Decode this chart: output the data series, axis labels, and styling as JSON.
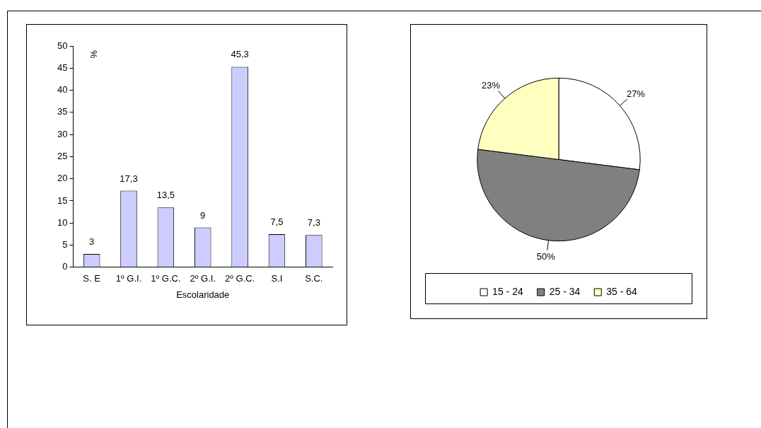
{
  "chart_data": [
    {
      "type": "bar",
      "xlabel": "Escolaridade",
      "ylabel": "%",
      "categories": [
        "S. E",
        "1º G.I.",
        "1º G.C.",
        "2º G.I.",
        "2º G.C.",
        "S.I",
        "S.C."
      ],
      "values": [
        3,
        17.3,
        13.5,
        9,
        45.3,
        7.5,
        7.3
      ],
      "value_labels": [
        "3",
        "17,3",
        "13,5",
        "9",
        "45,3",
        "7,5",
        "7,3"
      ],
      "color": "#ccccff",
      "ylim": [
        0,
        50
      ],
      "yticks": [
        0,
        5,
        10,
        15,
        20,
        25,
        30,
        35,
        40,
        45,
        50
      ],
      "grid": false,
      "legend": false
    },
    {
      "type": "pie",
      "categories": [
        "15 - 24",
        "25 - 34",
        "35 - 64"
      ],
      "values": [
        27,
        50,
        23
      ],
      "colors": [
        "#ffffff",
        "#808080",
        "#ffffc0"
      ],
      "value_labels": [
        "27%",
        "50%",
        "23%"
      ],
      "legend": "bottom"
    }
  ]
}
